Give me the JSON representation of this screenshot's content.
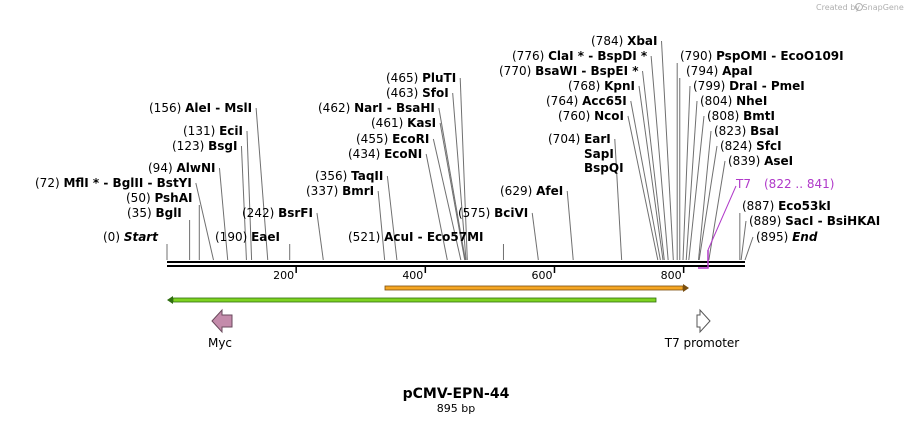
{
  "brand": "Created by SnapGene",
  "plasmid": {
    "name": "pCMV-EPN-44",
    "length_label": "895 bp",
    "length_bp": 895
  },
  "ruler": {
    "ticks": [
      "200",
      "400",
      "600",
      "800"
    ],
    "tick_values": [
      200,
      400,
      600,
      800
    ]
  },
  "sites": [
    {
      "pos": "(0)",
      "name": "Start",
      "bp": 0,
      "italic": true
    },
    {
      "pos": "(35)",
      "name": "BglI",
      "bp": 35
    },
    {
      "pos": "(50)",
      "name": "PshAI",
      "bp": 50
    },
    {
      "pos": "(72)",
      "name": "MflI * - BglII - BstYI",
      "bp": 72
    },
    {
      "pos": "(94)",
      "name": "AlwNI",
      "bp": 94
    },
    {
      "pos": "(123)",
      "name": "BsgI",
      "bp": 123
    },
    {
      "pos": "(131)",
      "name": "EciI",
      "bp": 131
    },
    {
      "pos": "(156)",
      "name": "AleI - MslI",
      "bp": 156
    },
    {
      "pos": "(190)",
      "name": "EaeI",
      "bp": 190
    },
    {
      "pos": "(242)",
      "name": "BsrFI",
      "bp": 242
    },
    {
      "pos": "(337)",
      "name": "BmrI",
      "bp": 337
    },
    {
      "pos": "(356)",
      "name": "TaqII",
      "bp": 356
    },
    {
      "pos": "(434)",
      "name": "EcoNI",
      "bp": 434
    },
    {
      "pos": "(455)",
      "name": "EcoRI",
      "bp": 455
    },
    {
      "pos": "(461)",
      "name": "KasI",
      "bp": 461
    },
    {
      "pos": "(462)",
      "name": "NarI - BsaHI",
      "bp": 462
    },
    {
      "pos": "(463)",
      "name": "SfoI",
      "bp": 463
    },
    {
      "pos": "(465)",
      "name": "PluTI",
      "bp": 465
    },
    {
      "pos": "(521)",
      "name": "AcuI - Eco57MI",
      "bp": 521
    },
    {
      "pos": "(575)",
      "name": "BciVI",
      "bp": 575
    },
    {
      "pos": "(629)",
      "name": "AfeI",
      "bp": 629
    },
    {
      "pos": "(704)",
      "name": "EarI",
      "bp": 704
    },
    {
      "pos": "",
      "name": "SapI",
      "bp": 704
    },
    {
      "pos": "",
      "name": "BspQI",
      "bp": 704
    },
    {
      "pos": "(760)",
      "name": "NcoI",
      "bp": 760
    },
    {
      "pos": "(764)",
      "name": "Acc65I",
      "bp": 764
    },
    {
      "pos": "(768)",
      "name": "KpnI",
      "bp": 768
    },
    {
      "pos": "(770)",
      "name": "BsaWI - BspEI *",
      "bp": 770
    },
    {
      "pos": "(776)",
      "name": "ClaI * - BspDI *",
      "bp": 776
    },
    {
      "pos": "(784)",
      "name": "XbaI",
      "bp": 784
    },
    {
      "pos": "(790)",
      "name": "PspOMI - EcoO109I",
      "bp": 790
    },
    {
      "pos": "(794)",
      "name": "ApaI",
      "bp": 794
    },
    {
      "pos": "(799)",
      "name": "DraI - PmeI",
      "bp": 799
    },
    {
      "pos": "(804)",
      "name": "NheI",
      "bp": 804
    },
    {
      "pos": "(808)",
      "name": "BmtI",
      "bp": 808
    },
    {
      "pos": "(823)",
      "name": "BsaI",
      "bp": 823
    },
    {
      "pos": "(824)",
      "name": "SfcI",
      "bp": 824
    },
    {
      "pos": "(839)",
      "name": "AseI",
      "bp": 839
    },
    {
      "pos": "(887)",
      "name": "Eco53kI",
      "bp": 887
    },
    {
      "pos": "(889)",
      "name": "SacI - BsiHKAI",
      "bp": 889
    },
    {
      "pos": "(895)",
      "name": "End",
      "bp": 895,
      "italic": true
    }
  ],
  "primer": {
    "name": "T7",
    "range": "(822 .. 841)",
    "color": "#b039c9"
  },
  "features": [
    {
      "name": "Myc",
      "color": "#c48bab",
      "direction": "left"
    },
    {
      "name": "T7 promoter",
      "color": "#ffffff",
      "direction": "right"
    }
  ],
  "orf_bars": [
    {
      "color": "#f5a623",
      "direction": "right"
    },
    {
      "color": "#2f9e2f",
      "direction": "left"
    }
  ]
}
